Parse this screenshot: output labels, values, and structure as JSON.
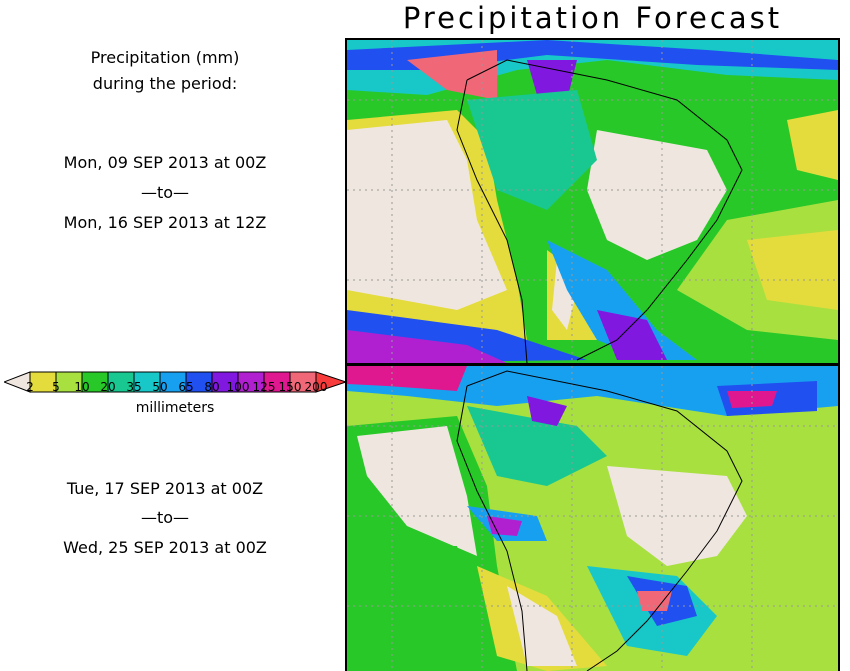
{
  "title": "Precipitation Forecast",
  "header": {
    "line1": "Precipitation (mm)",
    "line2": "during the period:"
  },
  "period1": {
    "start": "Mon, 09 SEP 2013 at 00Z",
    "sep": "—to—",
    "end": "Mon, 16 SEP 2013 at 12Z"
  },
  "period2": {
    "start": "Tue, 17 SEP 2013 at 00Z",
    "sep": "—to—",
    "end": "Wed, 25 SEP 2013 at 00Z"
  },
  "legend": {
    "unit": "millimeters",
    "thresholds": [
      "2",
      "5",
      "10",
      "20",
      "35",
      "50",
      "65",
      "80",
      "100",
      "125",
      "150",
      "200"
    ],
    "colors": {
      "below": "#f0e6e0",
      "bins": [
        "#e4dc3c",
        "#a8e040",
        "#28c828",
        "#18c890",
        "#18c8c8",
        "#18a0f0",
        "#2050f0",
        "#8018e0",
        "#b020d0",
        "#e01890",
        "#f06878"
      ],
      "above": "#f83c3c"
    }
  }
}
